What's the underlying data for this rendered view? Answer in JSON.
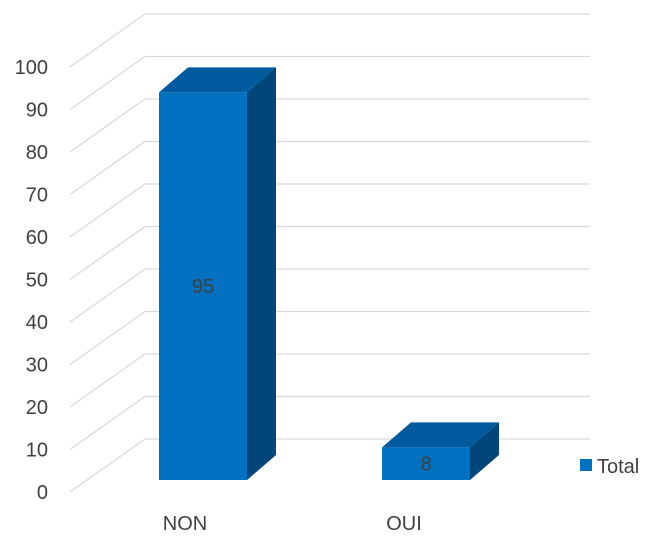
{
  "chart_data": {
    "type": "bar",
    "style": "3d-column",
    "categories": [
      "NON",
      "OUI"
    ],
    "series": [
      {
        "name": "Total",
        "values": [
          95,
          8
        ],
        "color": "#0070C0",
        "side_color": "#00467A",
        "top_color": "#005A9E"
      }
    ],
    "data_labels": [
      "95",
      "8"
    ],
    "yticks": [
      "0",
      "10",
      "20",
      "30",
      "40",
      "50",
      "60",
      "70",
      "80",
      "90",
      "100"
    ],
    "ylim": [
      0,
      100
    ],
    "grid": true,
    "legend": {
      "position": "right",
      "label": "Total"
    },
    "title": "",
    "xlabel": "",
    "ylabel": ""
  }
}
